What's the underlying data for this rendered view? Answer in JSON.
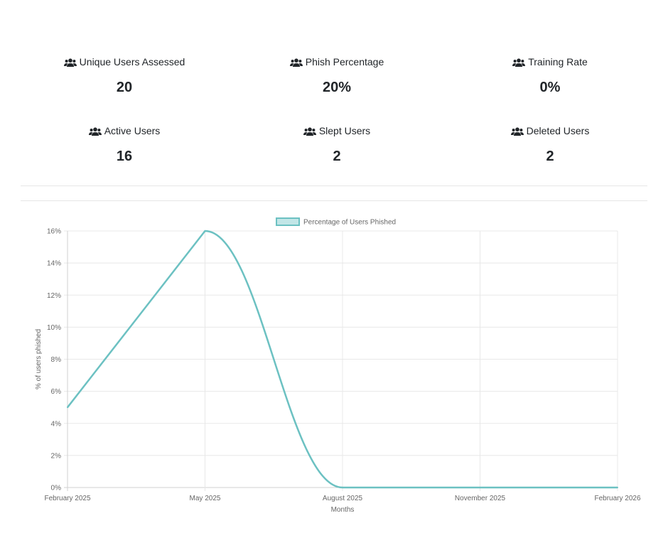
{
  "stats": [
    {
      "label": "Unique Users Assessed",
      "value": "20",
      "icon": "users-icon"
    },
    {
      "label": "Phish Percentage",
      "value": "20%",
      "icon": "users-icon"
    },
    {
      "label": "Training Rate",
      "value": "0%",
      "icon": "users-icon"
    },
    {
      "label": "Active Users",
      "value": "16",
      "icon": "users-icon"
    },
    {
      "label": "Slept Users",
      "value": "2",
      "icon": "users-icon"
    },
    {
      "label": "Deleted Users",
      "value": "2",
      "icon": "users-icon"
    }
  ],
  "chart_data": {
    "type": "line",
    "legend": {
      "label": "Percentage of Users Phished",
      "position": "top"
    },
    "categories": [
      "February 2025",
      "May 2025",
      "August 2025",
      "November 2025",
      "February 2026"
    ],
    "series": [
      {
        "name": "Percentage of Users Phished",
        "values": [
          5,
          16,
          0,
          0,
          0
        ],
        "color": "#6cc1c2"
      }
    ],
    "ylabel": "% of users phished",
    "xlabel": "Months",
    "ylim": [
      0,
      16
    ],
    "yticks": [
      "0%",
      "2%",
      "4%",
      "6%",
      "8%",
      "10%",
      "12%",
      "14%",
      "16%"
    ],
    "grid": true
  }
}
